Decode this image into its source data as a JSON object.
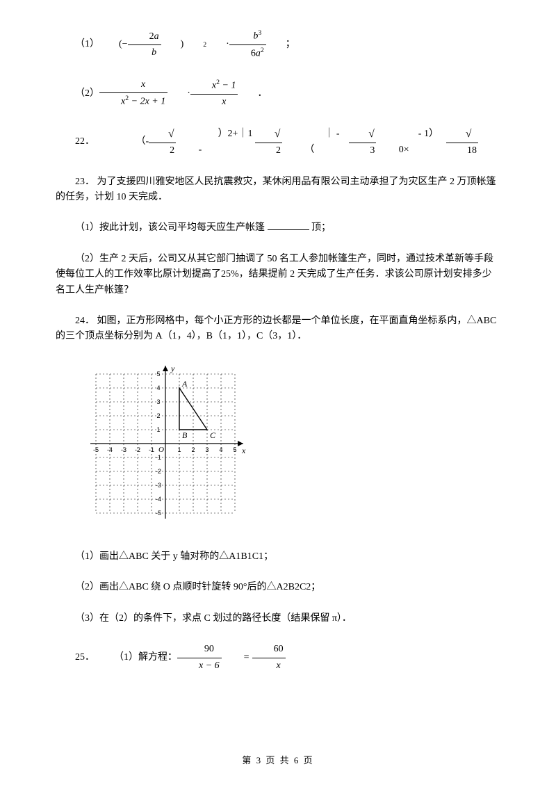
{
  "q21": {
    "part1_label": "（1）",
    "part2_label": "（2）",
    "f1_num_a": "2a",
    "f1_den_a": "b",
    "f1_pow": "2",
    "f1_num_b": "b",
    "f1_num_b_pow": "3",
    "f1_den_b": "6a",
    "f1_den_b_pow": "2",
    "f1_tail": "；",
    "f2_num_a": "x",
    "f2_den_a": "x",
    "f2_den_a_pow": "2",
    "f2_den_a_tail": " − 2x + 1",
    "f2_num_b": "x",
    "f2_num_b_pow": "2",
    "f2_num_b_tail": " − 1",
    "f2_den_b": "x",
    "f2_tail": "．"
  },
  "q22": {
    "label": "22．",
    "pre1": "（-",
    "sqrt1": "2",
    "post1": "）2+｜1 -",
    "sqrt2": "2",
    "post2": "｜ - （",
    "sqrt3": "3",
    "post3": " - 1）0×",
    "sqrt4": "18"
  },
  "q23": {
    "label": "23．",
    "intro": "为了支援四川雅安地区人民抗震救灾，某休闲用品有限公司主动承担了为灾区生产 2 万顶帐篷的任务，计划 10 天完成．",
    "p1": "（1）按此计划，该公司平均每天应生产帐篷",
    "p1_tail": "顶；",
    "p2a": "（2）生产 2 天后，公司又从其它部门抽调了 50 名工人参加帐篷生产，同时，通过技术革新等手段使每位工人的工作效率比原计划提高了",
    "pct": "25%",
    "p2b": "，结果提前 2 天完成了生产任务．求该公司原计划安排多少名工人生产帐篷？"
  },
  "q24": {
    "label": "24．",
    "intro": "如图，正方形网格中，每个小正方形的边长都是一个单位长度，在平面直角坐标系内，△ABC 的三个顶点坐标分别为 A（1，4），B（1，1），C（3，1）．",
    "p1": "（1）画出△ABC 关于 y 轴对称的△A1B1C1；",
    "p2": "（2）画出△ABC 绕 O 点顺时针旋转 90°后的△A2B2C2；",
    "p3": "（3）在（2）的条件下，求点 C 划过的路径长度（结果保留 π）．",
    "grid": {
      "range": [
        -5,
        5
      ],
      "labels_x": [
        "-5",
        "-4",
        "-3",
        "-2",
        "-1",
        "1",
        "2",
        "3",
        "4",
        "5"
      ],
      "labels_y": [
        "-5",
        "-4",
        "-3",
        "-2",
        "-1",
        "1",
        "2",
        "3",
        "4",
        "5"
      ],
      "xlabel": "x",
      "ylabel": "y",
      "origin": "O",
      "grid_color": "#000000",
      "line_color": "#000000",
      "bg_color": "#ffffff",
      "points": {
        "A": [
          1,
          4
        ],
        "B": [
          1,
          1
        ],
        "C": [
          3,
          1
        ]
      }
    }
  },
  "q25": {
    "label": "25．",
    "p1": "（1）解方程：",
    "eq_num_l": "90",
    "eq_den_l": "x − 6",
    "eq_eq": "=",
    "eq_num_r": "60",
    "eq_den_r": "x"
  },
  "footer": "第 3 页 共 6 页"
}
